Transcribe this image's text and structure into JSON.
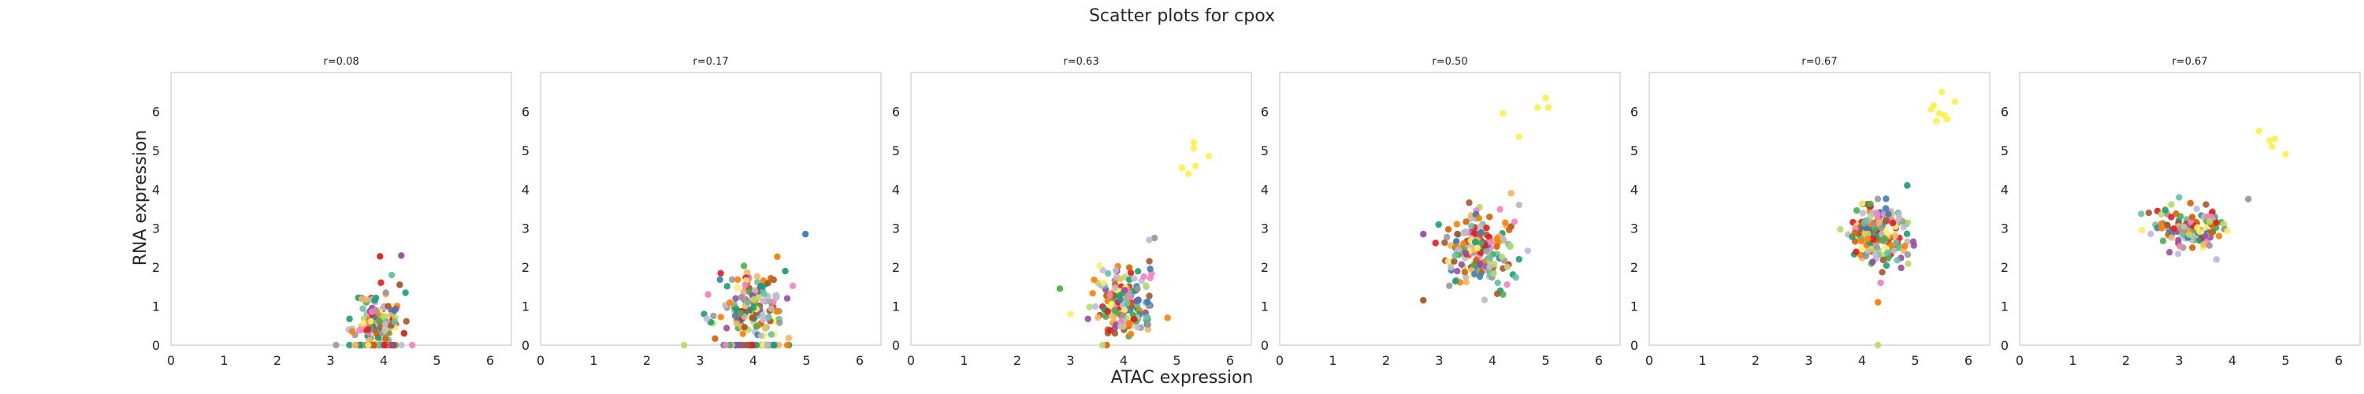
{
  "figure": {
    "title": "Scatter plots for cpox",
    "xlabel": "ATAC expression",
    "ylabel": "RNA expression"
  },
  "colors": {
    "palette": [
      "#e41a1c",
      "#377eb8",
      "#4daf4a",
      "#984ea3",
      "#ff7f00",
      "#ffed6f",
      "#a65628",
      "#f781bf",
      "#999999",
      "#66c2a5",
      "#b3de69",
      "#bebada",
      "#fdb462",
      "#1b9e77",
      "#d95f02",
      "#bcbcbc"
    ],
    "highlight": "#fff04d"
  },
  "chart_data": [
    {
      "type": "scatter",
      "title": "r=0.08",
      "xlim": [
        0,
        6.4
      ],
      "ylim": [
        0,
        7
      ],
      "xticks": [
        0,
        1,
        2,
        3,
        4,
        5,
        6
      ],
      "yticks": [
        0,
        1,
        2,
        3,
        4,
        5,
        6
      ],
      "grid": false,
      "clusters": [
        {
          "cx": 3.9,
          "cy": 0.65,
          "sx": 0.22,
          "sy": 0.35,
          "n": 120,
          "seed": 11
        },
        {
          "cx": 3.9,
          "cy": 0.0,
          "sx": 0.3,
          "sy": 0.0,
          "n": 50,
          "seed": 12
        }
      ],
      "points": [
        [
          3.93,
          2.28
        ],
        [
          4.33,
          2.3
        ],
        [
          4.3,
          1.55
        ],
        [
          4.15,
          1.8
        ]
      ]
    },
    {
      "type": "scatter",
      "title": "r=0.17",
      "xlim": [
        0,
        6.4
      ],
      "ylim": [
        0,
        7
      ],
      "xticks": [
        0,
        1,
        2,
        3,
        4,
        5,
        6
      ],
      "yticks": [
        0,
        1,
        2,
        3,
        4,
        5,
        6
      ],
      "grid": false,
      "clusters": [
        {
          "cx": 4.0,
          "cy": 0.95,
          "sx": 0.3,
          "sy": 0.42,
          "n": 160,
          "seed": 21
        },
        {
          "cx": 4.0,
          "cy": 0.0,
          "sx": 0.3,
          "sy": 0.0,
          "n": 50,
          "seed": 22
        }
      ],
      "points": [
        [
          4.98,
          2.85
        ],
        [
          4.45,
          2.27
        ],
        [
          3.15,
          1.3
        ],
        [
          2.7,
          0.0
        ],
        [
          4.6,
          1.9
        ]
      ]
    },
    {
      "type": "scatter",
      "title": "r=0.63",
      "xlim": [
        0,
        6.4
      ],
      "ylim": [
        0,
        7
      ],
      "xticks": [
        0,
        1,
        2,
        3,
        4,
        5,
        6
      ],
      "yticks": [
        0,
        1,
        2,
        3,
        4,
        5,
        6
      ],
      "grid": false,
      "clusters": [
        {
          "cx": 4.0,
          "cy": 1.05,
          "sx": 0.3,
          "sy": 0.45,
          "n": 170,
          "seed": 31
        }
      ],
      "points": [
        [
          2.8,
          1.45
        ],
        [
          3.0,
          0.8
        ],
        [
          4.58,
          2.75
        ],
        [
          4.48,
          2.7
        ],
        [
          5.32,
          5.2
        ],
        [
          5.32,
          5.05
        ],
        [
          5.6,
          4.85
        ],
        [
          5.1,
          4.55
        ],
        [
          5.35,
          4.6
        ],
        [
          5.22,
          4.4
        ]
      ],
      "highlight_from": 4
    },
    {
      "type": "scatter",
      "title": "r=0.50",
      "xlim": [
        0,
        6.4
      ],
      "ylim": [
        0,
        7
      ],
      "xticks": [
        0,
        1,
        2,
        3,
        4,
        5,
        6
      ],
      "yticks": [
        0,
        1,
        2,
        3,
        4,
        5,
        6
      ],
      "grid": false,
      "clusters": [
        {
          "cx": 3.75,
          "cy": 2.45,
          "sx": 0.35,
          "sy": 0.45,
          "n": 190,
          "seed": 41
        }
      ],
      "points": [
        [
          2.7,
          2.85
        ],
        [
          2.7,
          1.15
        ],
        [
          4.1,
          1.6
        ],
        [
          4.35,
          3.9
        ],
        [
          4.5,
          3.6
        ],
        [
          4.2,
          5.95
        ],
        [
          4.5,
          5.35
        ],
        [
          4.85,
          6.1
        ],
        [
          5.0,
          6.35
        ],
        [
          5.05,
          6.1
        ]
      ],
      "highlight_from": 5
    },
    {
      "type": "scatter",
      "title": "r=0.67",
      "xlim": [
        0,
        6.4
      ],
      "ylim": [
        0,
        7
      ],
      "xticks": [
        0,
        1,
        2,
        3,
        4,
        5,
        6
      ],
      "yticks": [
        0,
        1,
        2,
        3,
        4,
        5,
        6
      ],
      "grid": false,
      "clusters": [
        {
          "cx": 4.3,
          "cy": 2.85,
          "sx": 0.28,
          "sy": 0.42,
          "n": 190,
          "seed": 51
        }
      ],
      "points": [
        [
          4.3,
          1.1
        ],
        [
          4.35,
          1.6
        ],
        [
          4.3,
          0.0
        ],
        [
          4.85,
          4.1
        ],
        [
          5.3,
          6.05
        ],
        [
          5.5,
          6.5
        ],
        [
          5.45,
          5.95
        ],
        [
          5.75,
          6.25
        ],
        [
          5.6,
          5.8
        ],
        [
          5.4,
          5.75
        ],
        [
          5.55,
          5.9
        ],
        [
          5.35,
          6.15
        ]
      ],
      "highlight_from": 4
    },
    {
      "type": "scatter",
      "title": "r=0.67",
      "xlim": [
        0,
        6.4
      ],
      "ylim": [
        0,
        7
      ],
      "xticks": [
        0,
        1,
        2,
        3,
        4,
        5,
        6
      ],
      "yticks": [
        0,
        1,
        2,
        3,
        4,
        5,
        6
      ],
      "grid": false,
      "clusters": [
        {
          "cx": 3.2,
          "cy": 3.05,
          "sx": 0.35,
          "sy": 0.3,
          "n": 140,
          "seed": 61
        }
      ],
      "points": [
        [
          2.3,
          2.95
        ],
        [
          4.3,
          3.75
        ],
        [
          3.7,
          2.2
        ],
        [
          4.5,
          5.5
        ],
        [
          4.7,
          5.25
        ],
        [
          4.8,
          5.3
        ],
        [
          4.75,
          5.1
        ],
        [
          5.0,
          4.9
        ]
      ],
      "highlight_from": 3
    }
  ]
}
